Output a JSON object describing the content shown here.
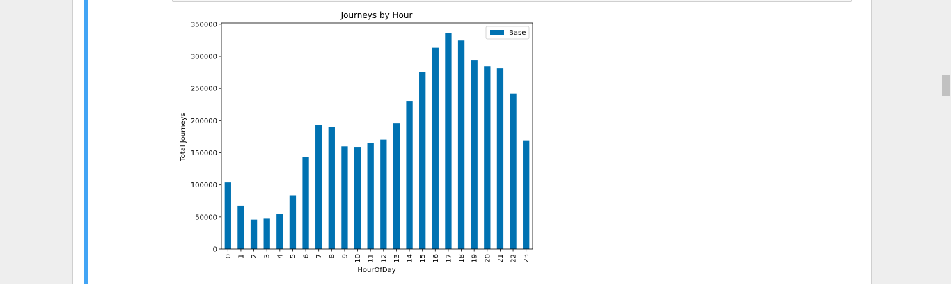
{
  "chart_data": {
    "type": "bar",
    "title": "Journeys by Hour",
    "xlabel": "HourOfDay",
    "ylabel": "Total Journeys",
    "categories": [
      "0",
      "1",
      "2",
      "3",
      "4",
      "5",
      "6",
      "7",
      "8",
      "9",
      "10",
      "11",
      "12",
      "13",
      "14",
      "15",
      "16",
      "17",
      "18",
      "19",
      "20",
      "21",
      "22",
      "23"
    ],
    "series": [
      {
        "name": "Base",
        "values": [
          103836,
          67227,
          45865,
          48287,
          55230,
          83939,
          143213,
          193094,
          190504,
          159967,
          159148,
          165703,
          170452,
          195877,
          230625,
          275466,
          313400,
          336190,
          324679,
          294513,
          284604,
          281460,
          241858,
          169342
        ],
        "color": "#0072b2"
      }
    ],
    "ylim": [
      0,
      352000
    ],
    "yticks": [
      0,
      50000,
      100000,
      150000,
      200000,
      250000,
      300000,
      350000
    ],
    "legend": "top-right",
    "grid": false
  }
}
